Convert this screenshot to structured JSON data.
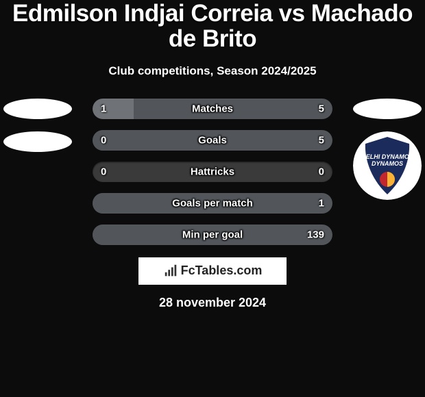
{
  "title": "Edmilson Indjai Correia vs Machado de Brito",
  "title_fontsize": 35,
  "title_color": "#ffffff",
  "subtitle": "Club competitions, Season 2024/2025",
  "subtitle_fontsize": 17,
  "subtitle_margin_top": 18,
  "date": "28 november 2024",
  "date_fontsize": 18,
  "background_color": "#0c0c0c",
  "bar_track_color": "#3a3a3a",
  "fill_left_color": "#6f7378",
  "fill_right_color": "#52565b",
  "bars": [
    {
      "label": "Matches",
      "left": "1",
      "right": "5",
      "left_pct": 17,
      "right_pct": 83
    },
    {
      "label": "Goals",
      "left": "0",
      "right": "5",
      "left_pct": 0,
      "right_pct": 100
    },
    {
      "label": "Hattricks",
      "left": "0",
      "right": "0",
      "left_pct": 0,
      "right_pct": 0
    },
    {
      "label": "Goals per match",
      "left": "",
      "right": "1",
      "left_pct": 0,
      "right_pct": 100
    },
    {
      "label": "Min per goal",
      "left": "",
      "right": "139",
      "left_pct": 0,
      "right_pct": 100
    }
  ],
  "left_side": {
    "ovals": 2
  },
  "right_side": {
    "ovals": 1,
    "club_name": "Delhi Dynamos",
    "club_bg": "#1a2b5c",
    "club_accent_red": "#c1272d",
    "club_accent_yellow": "#f9b233",
    "club_text": "DELHI DYNAMOS"
  },
  "brand": {
    "text": "FcTables.com",
    "icon_name": "barchart-icon",
    "fontsize": 18
  }
}
